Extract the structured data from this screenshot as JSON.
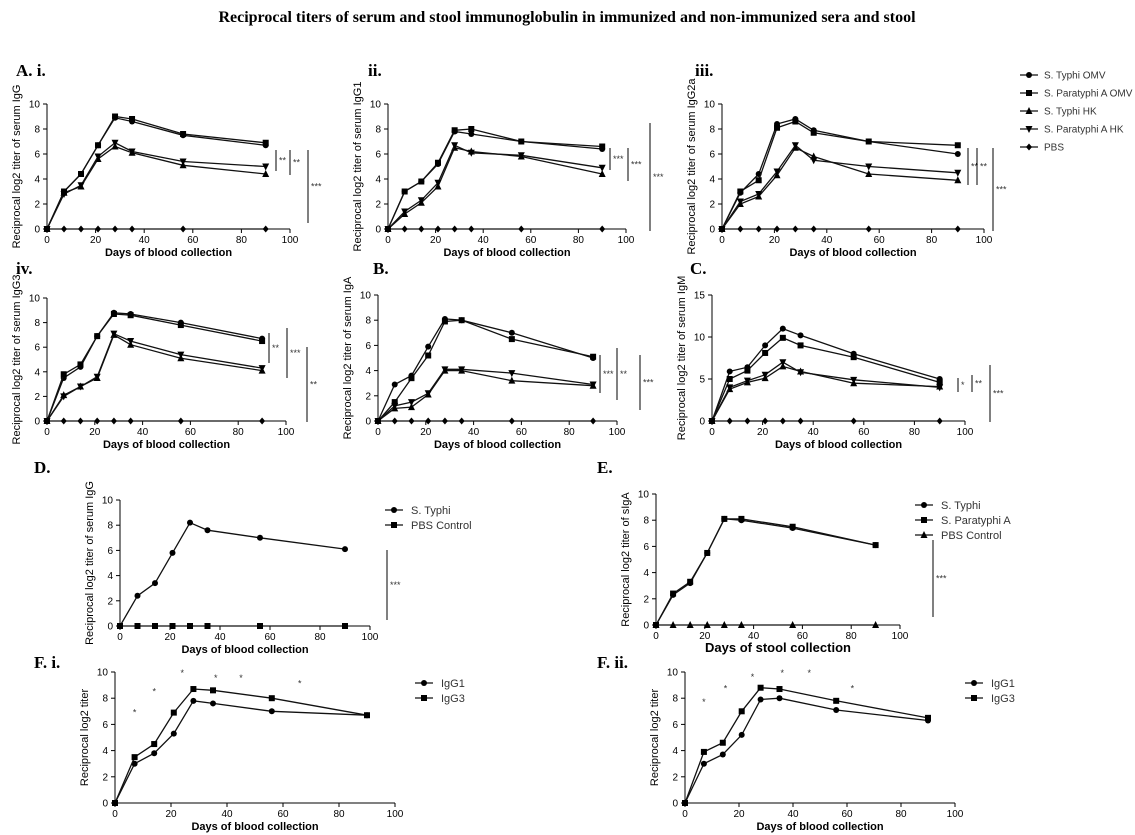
{
  "title": "Reciprocal titers of serum and stool immunoglobulin in immunized and non-immunized sera and stool",
  "legend_main": [
    {
      "name": "S. Typhi OMV",
      "marker": "circle"
    },
    {
      "name": "S. Paratyphi A OMV",
      "marker": "square"
    },
    {
      "name": "S. Typhi HK",
      "marker": "triangle"
    },
    {
      "name": "S. Paratyphi A HK",
      "marker": "triangle-down"
    },
    {
      "name": "PBS",
      "marker": "diamond"
    }
  ],
  "chart_data": [
    {
      "panel": "A. i.",
      "type": "line",
      "xlabel": "Days of blood collection",
      "ylabel": "Reciprocal log2 titer of serum IgG",
      "xlim": [
        0,
        100
      ],
      "ylim": [
        0,
        10
      ],
      "xticks": [
        "0",
        "20",
        "40",
        "60",
        "80",
        "100"
      ],
      "yticks": [
        "0",
        "2",
        "4",
        "6",
        "8",
        "10"
      ],
      "x": [
        0,
        7,
        14,
        21,
        28,
        35,
        56,
        90
      ],
      "series": [
        {
          "name": "S. Typhi OMV",
          "marker": "circle",
          "values": [
            0,
            3.0,
            4.4,
            6.7,
            8.9,
            8.6,
            7.5,
            6.7
          ]
        },
        {
          "name": "S. Paratyphi A OMV",
          "marker": "square",
          "values": [
            0,
            3.0,
            4.4,
            6.7,
            9.0,
            8.8,
            7.6,
            6.9
          ]
        },
        {
          "name": "S. Typhi HK",
          "marker": "triangle",
          "values": [
            0,
            2.9,
            3.4,
            5.6,
            6.6,
            6.1,
            5.1,
            4.4
          ]
        },
        {
          "name": "S. Paratyphi A HK",
          "marker": "triangle-down",
          "values": [
            0,
            2.8,
            3.5,
            5.8,
            6.9,
            6.2,
            5.4,
            5.0
          ]
        },
        {
          "name": "PBS",
          "marker": "diamond",
          "values": [
            0,
            0,
            0,
            0,
            0,
            0,
            0,
            0
          ]
        }
      ],
      "significance": [
        "**",
        "**",
        "***"
      ]
    },
    {
      "panel": "ii.",
      "type": "line",
      "xlabel": "Days of blood collection",
      "ylabel": "Reciprocal log2 titer of serum IgG1",
      "xlim": [
        0,
        100
      ],
      "ylim": [
        0,
        10
      ],
      "xticks": [
        "0",
        "20",
        "40",
        "60",
        "80",
        "100"
      ],
      "yticks": [
        "0",
        "2",
        "4",
        "6",
        "8",
        "10"
      ],
      "x": [
        0,
        7,
        14,
        21,
        28,
        35,
        56,
        90
      ],
      "series": [
        {
          "name": "S. Typhi OMV",
          "marker": "circle",
          "values": [
            0,
            3.0,
            3.8,
            5.2,
            7.8,
            7.6,
            7.0,
            6.4
          ]
        },
        {
          "name": "S. Paratyphi A OMV",
          "marker": "square",
          "values": [
            0,
            3.0,
            3.8,
            5.3,
            7.9,
            8.0,
            7.0,
            6.6
          ]
        },
        {
          "name": "S. Typhi HK",
          "marker": "triangle",
          "values": [
            0,
            1.2,
            2.1,
            3.4,
            6.5,
            6.2,
            5.8,
            4.4
          ]
        },
        {
          "name": "S. Paratyphi A HK",
          "marker": "triangle-down",
          "values": [
            0,
            1.4,
            2.3,
            3.7,
            6.7,
            6.1,
            5.9,
            4.9
          ]
        },
        {
          "name": "PBS",
          "marker": "diamond",
          "values": [
            0,
            0,
            0,
            0,
            0,
            0,
            0,
            0
          ]
        }
      ],
      "significance": [
        "***",
        "***",
        "***"
      ]
    },
    {
      "panel": "iii.",
      "type": "line",
      "xlabel": "Days of blood collection",
      "ylabel": "Reciprocal log2 titer of serum IgG2a",
      "xlim": [
        0,
        100
      ],
      "ylim": [
        0,
        10
      ],
      "xticks": [
        "0",
        "20",
        "40",
        "60",
        "80",
        "100"
      ],
      "yticks": [
        "0",
        "2",
        "4",
        "6",
        "8",
        "10"
      ],
      "x": [
        0,
        7,
        14,
        21,
        28,
        35,
        56,
        90
      ],
      "series": [
        {
          "name": "S. Typhi OMV",
          "marker": "circle",
          "values": [
            0,
            2.9,
            4.4,
            8.4,
            8.8,
            7.9,
            7.0,
            6.0
          ]
        },
        {
          "name": "S. Paratyphi A OMV",
          "marker": "square",
          "values": [
            0,
            3.0,
            3.9,
            8.1,
            8.6,
            7.7,
            7.0,
            6.7
          ]
        },
        {
          "name": "S. Typhi HK",
          "marker": "triangle",
          "values": [
            0,
            2.0,
            2.6,
            4.3,
            6.5,
            5.8,
            4.4,
            3.9
          ]
        },
        {
          "name": "S. Paratyphi A HK",
          "marker": "triangle-down",
          "values": [
            0,
            2.2,
            2.8,
            4.6,
            6.7,
            5.5,
            5.0,
            4.5
          ]
        },
        {
          "name": "PBS",
          "marker": "diamond",
          "values": [
            0,
            0,
            0,
            0,
            0,
            0,
            0,
            0
          ]
        }
      ],
      "significance": [
        "**",
        "**",
        "***"
      ]
    },
    {
      "panel": "iv.",
      "type": "line",
      "xlabel": "Days of blood collection",
      "ylabel": "Reciprocal log2 titer of serum IgG3",
      "xlim": [
        0,
        100
      ],
      "ylim": [
        0,
        10
      ],
      "xticks": [
        "0",
        "20",
        "40",
        "60",
        "80",
        "100"
      ],
      "yticks": [
        "0",
        "2",
        "4",
        "6",
        "8",
        "10"
      ],
      "x": [
        0,
        7,
        14,
        21,
        28,
        35,
        56,
        90
      ],
      "series": [
        {
          "name": "S. Typhi OMV",
          "marker": "circle",
          "values": [
            0,
            3.5,
            4.4,
            6.9,
            8.8,
            8.7,
            8.0,
            6.7
          ]
        },
        {
          "name": "S. Paratyphi A OMV",
          "marker": "square",
          "values": [
            0,
            3.8,
            4.6,
            6.9,
            8.7,
            8.6,
            7.8,
            6.5
          ]
        },
        {
          "name": "S. Typhi HK",
          "marker": "triangle",
          "values": [
            0,
            2.1,
            2.8,
            3.5,
            7.0,
            6.2,
            5.1,
            4.1
          ]
        },
        {
          "name": "S. Paratyphi A HK",
          "marker": "triangle-down",
          "values": [
            0,
            2.0,
            2.8,
            3.6,
            7.1,
            6.5,
            5.4,
            4.3
          ]
        },
        {
          "name": "PBS",
          "marker": "diamond",
          "values": [
            0,
            0,
            0,
            0,
            0,
            0,
            0,
            0
          ]
        }
      ],
      "significance": [
        "**",
        "***",
        "**"
      ]
    },
    {
      "panel": "B.",
      "type": "line",
      "xlabel": "Days of blood collection",
      "ylabel": "Reciprocal log2 titer of serum IgA",
      "xlim": [
        0,
        100
      ],
      "ylim": [
        0,
        10
      ],
      "xticks": [
        "0",
        "20",
        "40",
        "60",
        "80",
        "100"
      ],
      "yticks": [
        "0",
        "2",
        "4",
        "6",
        "8",
        "10"
      ],
      "x": [
        0,
        7,
        14,
        21,
        28,
        35,
        56,
        90
      ],
      "series": [
        {
          "name": "S. Typhi OMV",
          "marker": "circle",
          "values": [
            0,
            2.9,
            3.6,
            5.9,
            8.1,
            8.0,
            7.0,
            5.0
          ]
        },
        {
          "name": "S. Paratyphi A OMV",
          "marker": "square",
          "values": [
            0,
            1.5,
            3.4,
            5.2,
            7.9,
            8.0,
            6.5,
            5.1
          ]
        },
        {
          "name": "S. Typhi HK",
          "marker": "triangle",
          "values": [
            0,
            1.0,
            1.1,
            2.1,
            4.0,
            4.0,
            3.2,
            2.8
          ]
        },
        {
          "name": "S. Paratyphi A HK",
          "marker": "triangle-down",
          "values": [
            0,
            1.2,
            1.5,
            2.2,
            4.1,
            4.1,
            3.8,
            2.9
          ]
        },
        {
          "name": "PBS",
          "marker": "diamond",
          "values": [
            0,
            0,
            0,
            0,
            0,
            0,
            0,
            0
          ]
        }
      ],
      "significance": [
        "***",
        "**",
        "***"
      ]
    },
    {
      "panel": "C.",
      "type": "line",
      "xlabel": "Days of blood collection",
      "ylabel": "Reciprocal log2 titer of serum IgM",
      "xlim": [
        0,
        100
      ],
      "ylim": [
        0,
        15
      ],
      "xticks": [
        "0",
        "20",
        "40",
        "60",
        "80",
        "100"
      ],
      "yticks": [
        "0",
        "5",
        "10",
        "15"
      ],
      "x": [
        0,
        7,
        14,
        21,
        28,
        35,
        56,
        90
      ],
      "series": [
        {
          "name": "S. Typhi OMV",
          "marker": "circle",
          "values": [
            0,
            5.9,
            6.4,
            9.0,
            11.0,
            10.2,
            8.0,
            5.0
          ]
        },
        {
          "name": "S. Paratyphi A OMV",
          "marker": "square",
          "values": [
            0,
            5.0,
            6.0,
            8.1,
            9.9,
            9.0,
            7.6,
            4.6
          ]
        },
        {
          "name": "S. Typhi HK",
          "marker": "triangle",
          "values": [
            0,
            3.8,
            4.6,
            5.1,
            6.5,
            5.9,
            4.5,
            4.1
          ]
        },
        {
          "name": "S. Paratyphi A HK",
          "marker": "triangle-down",
          "values": [
            0,
            4.0,
            4.8,
            5.5,
            7.0,
            5.8,
            4.9,
            4.0
          ]
        },
        {
          "name": "PBS",
          "marker": "diamond",
          "values": [
            0,
            0,
            0,
            0,
            0,
            0,
            0,
            0
          ]
        }
      ],
      "significance": [
        "*",
        "**",
        "***"
      ]
    },
    {
      "panel": "D.",
      "type": "line",
      "xlabel": "Days of blood collection",
      "ylabel": "Reciprocal log2 titer of serum IgG",
      "xlim": [
        0,
        100
      ],
      "ylim": [
        0,
        10
      ],
      "xticks": [
        "0",
        "20",
        "40",
        "60",
        "80",
        "100"
      ],
      "yticks": [
        "0",
        "2",
        "4",
        "6",
        "8",
        "10"
      ],
      "x": [
        0,
        7,
        14,
        21,
        28,
        35,
        56,
        90
      ],
      "series": [
        {
          "name": "S. Typhi",
          "marker": "circle",
          "values": [
            0,
            2.4,
            3.4,
            5.8,
            8.2,
            7.6,
            7.0,
            6.1
          ]
        },
        {
          "name": "PBS Control",
          "marker": "square",
          "values": [
            0,
            0,
            0,
            0,
            0,
            0,
            0,
            0
          ]
        }
      ],
      "significance": [
        "***"
      ]
    },
    {
      "panel": "E.",
      "type": "line",
      "xlabel": "Days of stool collection",
      "ylabel": "Reciprocal log2 titer of sIgA",
      "xlim": [
        0,
        100
      ],
      "ylim": [
        0,
        10
      ],
      "xticks": [
        "0",
        "20",
        "40",
        "60",
        "80",
        "100"
      ],
      "yticks": [
        "0",
        "2",
        "4",
        "6",
        "8",
        "10"
      ],
      "x": [
        0,
        7,
        14,
        21,
        28,
        35,
        56,
        90
      ],
      "series": [
        {
          "name": "S. Typhi",
          "marker": "circle",
          "values": [
            0,
            2.3,
            3.2,
            5.5,
            8.1,
            8.0,
            7.4,
            6.1
          ]
        },
        {
          "name": "S. Paratyphi A",
          "marker": "square",
          "values": [
            0,
            2.4,
            3.3,
            5.5,
            8.1,
            8.1,
            7.5,
            6.1
          ]
        },
        {
          "name": "PBS Control",
          "marker": "triangle",
          "values": [
            0,
            0,
            0,
            0,
            0,
            0,
            0,
            0
          ]
        }
      ],
      "significance": [
        "***"
      ]
    },
    {
      "panel": "F. i.",
      "type": "line",
      "xlabel": "Days of blood collection",
      "ylabel": "Reciprocal log2 titer",
      "xlim": [
        0,
        100
      ],
      "ylim": [
        0,
        10
      ],
      "xticks": [
        "0",
        "20",
        "40",
        "60",
        "80",
        "100"
      ],
      "yticks": [
        "0",
        "2",
        "4",
        "6",
        "8",
        "10"
      ],
      "x": [
        0,
        7,
        14,
        21,
        28,
        35,
        56,
        90
      ],
      "series": [
        {
          "name": "IgG1",
          "marker": "circle",
          "values": [
            0,
            3.0,
            3.8,
            5.3,
            7.8,
            7.6,
            7.0,
            6.7
          ]
        },
        {
          "name": "IgG3",
          "marker": "square",
          "values": [
            0,
            3.5,
            4.5,
            6.9,
            8.7,
            8.6,
            8.0,
            6.7
          ]
        }
      ],
      "significance_markers": [
        {
          "x": 7,
          "y": 7.0,
          "text": "*"
        },
        {
          "x": 14,
          "y": 8.6,
          "text": "*"
        },
        {
          "x": 24,
          "y": 10.0,
          "text": "*"
        },
        {
          "x": 36,
          "y": 9.6,
          "text": "*"
        },
        {
          "x": 45,
          "y": 9.6,
          "text": "*"
        },
        {
          "x": 66,
          "y": 9.2,
          "text": "*"
        }
      ]
    },
    {
      "panel": "F. ii.",
      "type": "line",
      "xlabel": "Days of blood collection",
      "ylabel": "Reciprocal log2 titer",
      "xlim": [
        0,
        100
      ],
      "ylim": [
        0,
        10
      ],
      "xticks": [
        "0",
        "20",
        "40",
        "60",
        "80",
        "100"
      ],
      "yticks": [
        "0",
        "2",
        "4",
        "6",
        "8",
        "10"
      ],
      "x": [
        0,
        7,
        14,
        21,
        28,
        35,
        56,
        90
      ],
      "series": [
        {
          "name": "IgG1",
          "marker": "circle",
          "values": [
            0,
            3.0,
            3.7,
            5.2,
            7.9,
            8.0,
            7.1,
            6.3
          ]
        },
        {
          "name": "IgG3",
          "marker": "square",
          "values": [
            0,
            3.9,
            4.6,
            7.0,
            8.8,
            8.7,
            7.8,
            6.5
          ]
        }
      ],
      "significance_markers": [
        {
          "x": 7,
          "y": 7.8,
          "text": "*"
        },
        {
          "x": 15,
          "y": 8.8,
          "text": "*"
        },
        {
          "x": 25,
          "y": 9.7,
          "text": "*"
        },
        {
          "x": 36,
          "y": 10.0,
          "text": "*"
        },
        {
          "x": 46,
          "y": 10.0,
          "text": "*"
        },
        {
          "x": 62,
          "y": 8.8,
          "text": "*"
        }
      ]
    }
  ]
}
